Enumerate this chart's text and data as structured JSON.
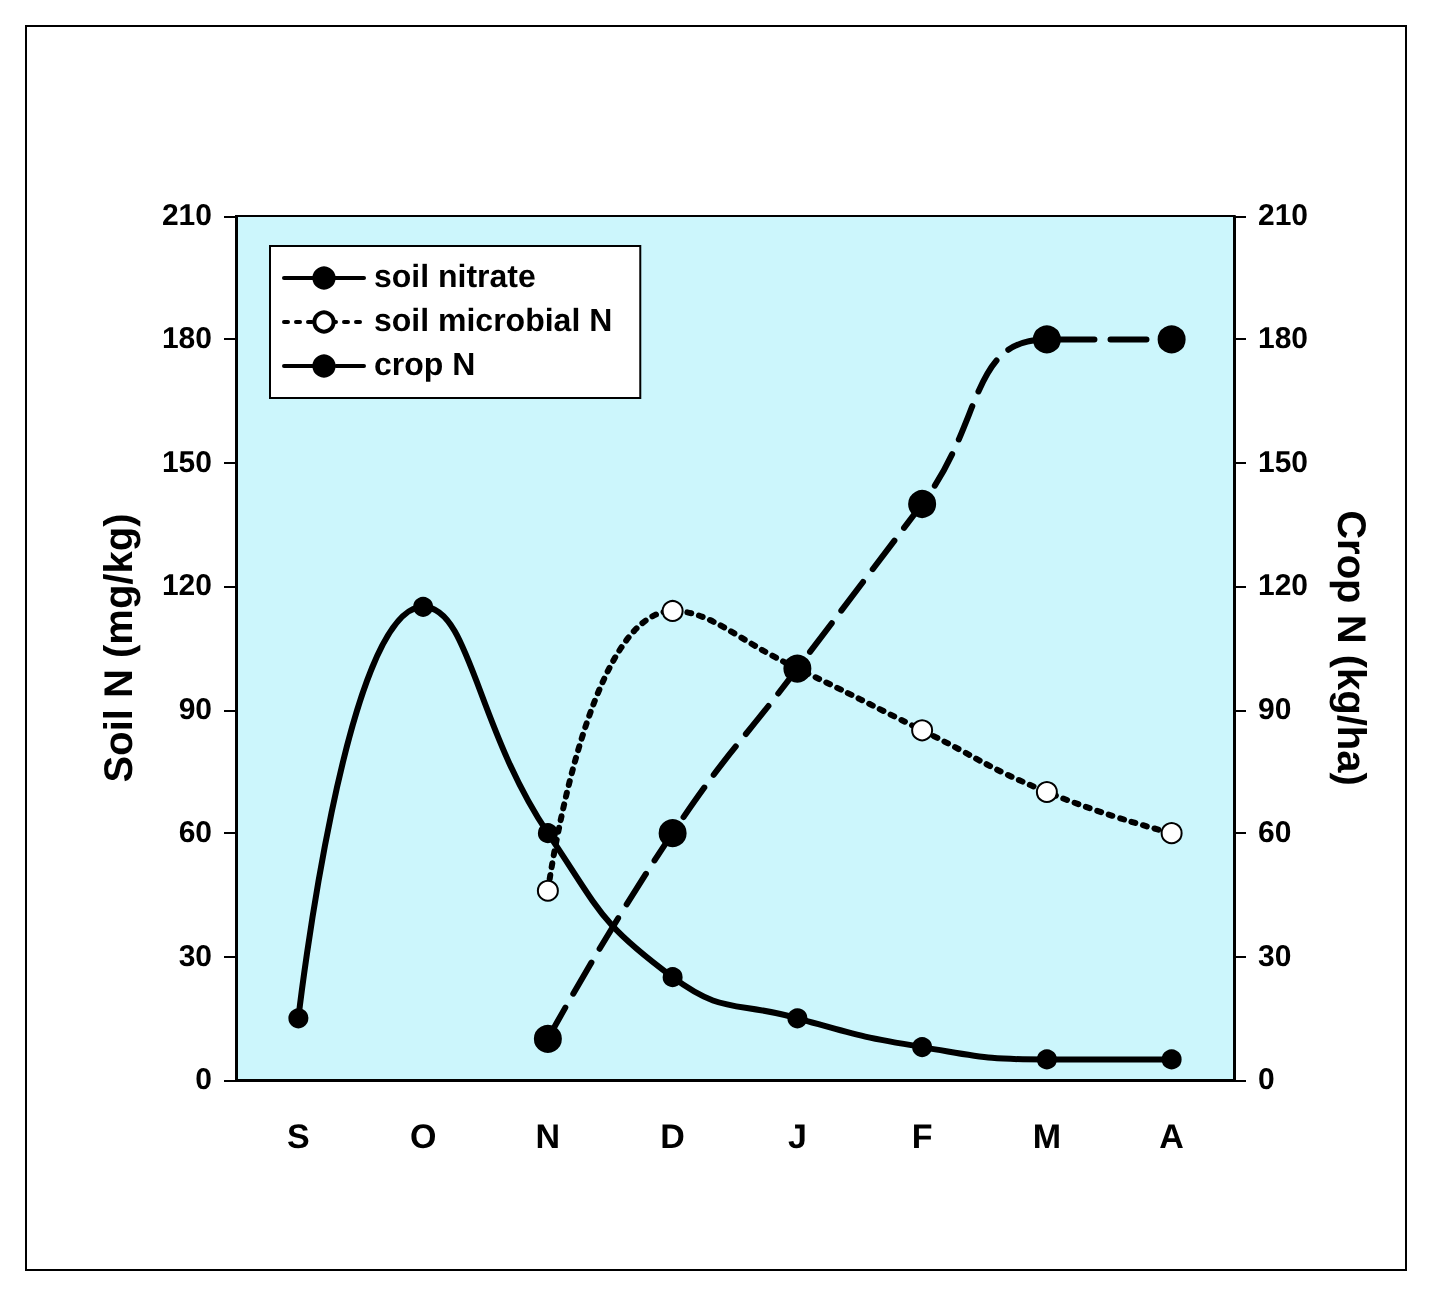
{
  "chart_data": {
    "type": "line",
    "ylabel": "Soil N (mg/kg)",
    "y2label": "Crop N (kg/ha)",
    "categories": [
      "S",
      "O",
      "N",
      "D",
      "J",
      "F",
      "M",
      "A"
    ],
    "series": [
      {
        "name": "soil nitrate",
        "color": "#000000",
        "line_style": "solid",
        "values": [
          15,
          115,
          60,
          25,
          15,
          8,
          5,
          5
        ]
      },
      {
        "name": "soil microbial N",
        "color": "#000000",
        "line_style": "dotted",
        "values": [
          null,
          null,
          46,
          114,
          100,
          85,
          70,
          60
        ]
      },
      {
        "name": "crop N",
        "color": "#000000",
        "line_style": "dashed",
        "axis": "y2",
        "values": [
          null,
          null,
          10,
          60,
          100,
          140,
          180,
          180
        ]
      }
    ],
    "ylim": [
      0,
      210
    ],
    "yticks": [
      0,
      30,
      60,
      90,
      120,
      150,
      180,
      210
    ],
    "y2lim": [
      0,
      210
    ],
    "y2ticks": [
      0,
      30,
      60,
      90,
      120,
      150,
      180,
      210
    ],
    "marker": "circle",
    "legend": "top left",
    "grid": false
  }
}
